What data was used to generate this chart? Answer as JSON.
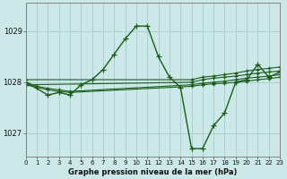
{
  "title": "Graphe pression niveau de la mer (hPa)",
  "background_color": "#cce8e8",
  "grid_color": "#aad0d0",
  "line_color": "#1a5c1a",
  "xlim": [
    0,
    23
  ],
  "ylim": [
    1026.55,
    1029.55
  ],
  "yticks": [
    1027,
    1028,
    1029
  ],
  "xticks": [
    0,
    1,
    2,
    3,
    4,
    5,
    6,
    7,
    8,
    9,
    10,
    11,
    12,
    13,
    14,
    15,
    16,
    17,
    18,
    19,
    20,
    21,
    22,
    23
  ],
  "series": [
    {
      "x": [
        0,
        2,
        3,
        4,
        5,
        6,
        7,
        8,
        9,
        10,
        11,
        12,
        13,
        14,
        15,
        16,
        17,
        18,
        19,
        20,
        21,
        22,
        23
      ],
      "y": [
        1028.0,
        1027.75,
        1027.8,
        1027.75,
        1027.95,
        1028.05,
        1028.25,
        1028.55,
        1028.85,
        1029.1,
        1029.1,
        1028.5,
        1028.1,
        1027.9,
        1026.7,
        1026.7,
        1027.15,
        1027.4,
        1028.0,
        1028.05,
        1028.35,
        1028.1,
        1028.2
      ]
    },
    {
      "x": [
        0,
        1,
        2,
        3,
        4,
        15,
        16,
        17,
        18,
        19,
        20,
        21,
        22,
        23
      ],
      "y": [
        1027.95,
        1027.9,
        1027.85,
        1027.82,
        1027.8,
        1027.92,
        1027.95,
        1027.97,
        1027.98,
        1028.0,
        1028.02,
        1028.05,
        1028.07,
        1028.1
      ]
    },
    {
      "x": [
        0,
        1,
        2,
        3,
        4,
        15,
        16,
        17,
        18,
        19,
        20,
        21,
        22,
        23
      ],
      "y": [
        1028.0,
        1027.92,
        1027.88,
        1027.85,
        1027.82,
        1027.95,
        1027.98,
        1028.0,
        1028.02,
        1028.05,
        1028.08,
        1028.1,
        1028.12,
        1028.15
      ]
    },
    {
      "x": [
        0,
        15,
        16,
        17,
        18,
        19,
        20,
        21,
        22,
        23
      ],
      "y": [
        1027.95,
        1028.0,
        1028.05,
        1028.08,
        1028.1,
        1028.12,
        1028.15,
        1028.18,
        1028.2,
        1028.22
      ]
    },
    {
      "x": [
        0,
        15,
        16,
        17,
        18,
        19,
        20,
        21,
        22,
        23
      ],
      "y": [
        1028.05,
        1028.05,
        1028.1,
        1028.12,
        1028.15,
        1028.18,
        1028.22,
        1028.25,
        1028.27,
        1028.3
      ]
    }
  ]
}
